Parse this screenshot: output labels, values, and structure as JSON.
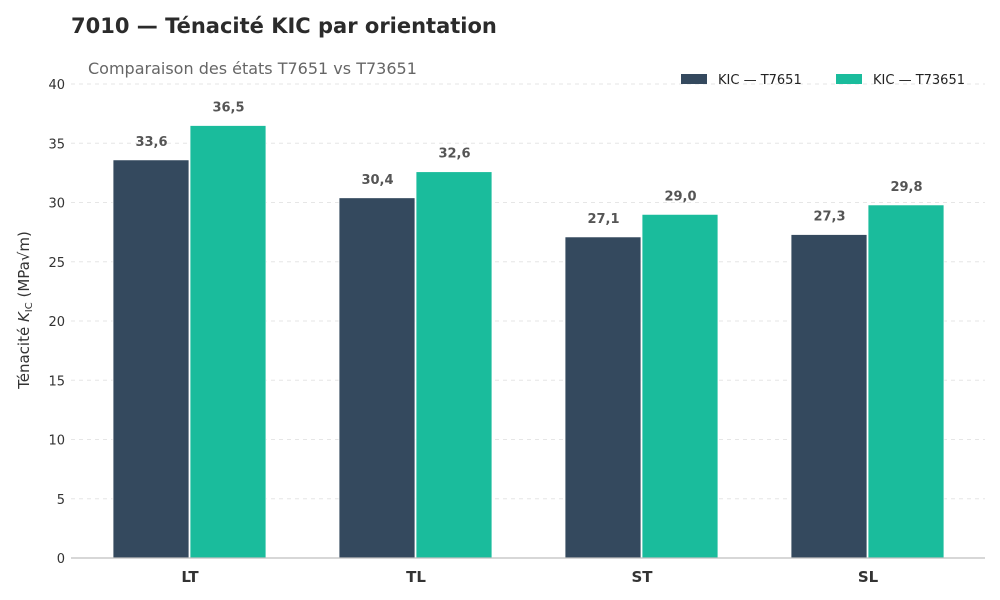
{
  "chart_data": {
    "type": "bar",
    "title": "7010 — Ténacité KIC par orientation",
    "subtitle": "Comparaison des états T7651 vs T73651",
    "ylabel_prefix": "Ténacité ",
    "ylabel_symbol": "K",
    "ylabel_subscript": "IC",
    "ylabel_suffix": " (MPa√m)",
    "xlabel": "",
    "ylim": [
      0,
      40
    ],
    "yticks": [
      0,
      5,
      10,
      15,
      20,
      25,
      30,
      35,
      40
    ],
    "grid": true,
    "legend_position": "top-right",
    "categories": [
      "LT",
      "TL",
      "ST",
      "SL"
    ],
    "series": [
      {
        "name": "KIC — T7651",
        "values": [
          33.6,
          30.4,
          27.1,
          27.3
        ],
        "labels": [
          "33,6",
          "30,4",
          "27,1",
          "27,3"
        ],
        "color": "#34495e"
      },
      {
        "name": "KIC — T73651",
        "values": [
          36.5,
          32.6,
          29.0,
          29.8
        ],
        "labels": [
          "36,5",
          "32,6",
          "29,0",
          "29,8"
        ],
        "color": "#1abc9c"
      }
    ]
  }
}
